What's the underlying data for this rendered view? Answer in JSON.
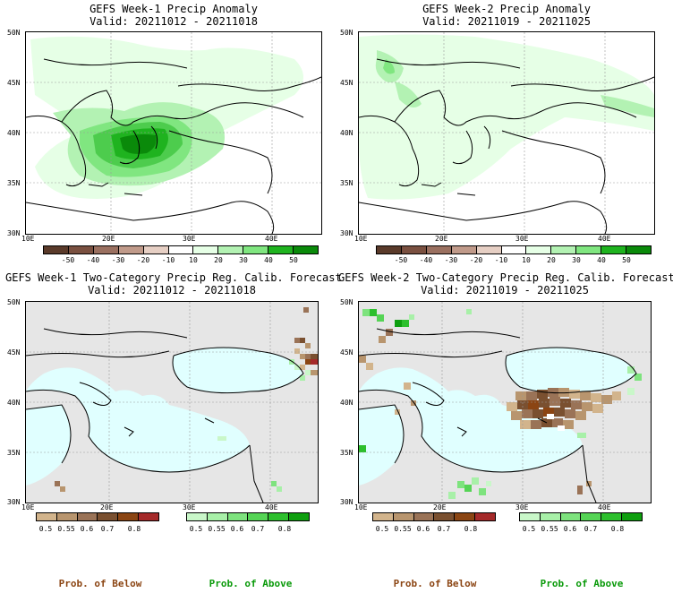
{
  "colors": {
    "above": [
      "#e6ffe6",
      "#b3f2b3",
      "#80e680",
      "#4dcc4d",
      "#1fb31f",
      "#0a8a0a"
    ],
    "below": [
      "#5a3a2a",
      "#7a5040",
      "#9a7060",
      "#c09a8a",
      "#e6cfc4",
      "#f7eae4"
    ],
    "prob_below": [
      "#d2b48c",
      "#b8956e",
      "#9a7357",
      "#7a5030",
      "#8b4513",
      "#a52a2a"
    ],
    "prob_above": [
      "#c9f7c9",
      "#a8f0a8",
      "#7ee37e",
      "#55d455",
      "#2dbf2d",
      "#0f9f0f"
    ],
    "below_label": "#8b4513",
    "above_label": "#0a9a0a",
    "sea_prob": "#e0ffff",
    "land_prob": "#e6e6e6"
  },
  "panels": [
    {
      "title": "GEFS Week-1 Precip Anomaly",
      "valid": "Valid: 20211012 - 20211018",
      "type": "anomaly",
      "lat_labels": [
        "50N",
        "45N",
        "40N",
        "35N",
        "30N"
      ],
      "lon_labels": [
        "10E",
        "20E",
        "30E",
        "40E"
      ]
    },
    {
      "title": "GEFS Week-2 Precip Anomaly",
      "valid": "Valid: 20211019 - 20211025",
      "type": "anomaly",
      "lat_labels": [
        "50N",
        "45N",
        "40N",
        "35N",
        "30N"
      ],
      "lon_labels": [
        "10E",
        "20E",
        "30E",
        "40E"
      ]
    },
    {
      "title": "GEFS Week-1 Two-Category Precip Reg. Calib. Forecast",
      "valid": "Valid: 20211012 - 20211018",
      "type": "prob",
      "lat_labels": [
        "50N",
        "45N",
        "40N",
        "35N",
        "30N"
      ],
      "lon_labels": [
        "10E",
        "20E",
        "30E",
        "40E"
      ]
    },
    {
      "title": "GEFS Week-2 Two-Category Precip Reg. Calib. Forecast",
      "valid": "Valid: 20211019 - 20211025",
      "type": "prob",
      "lat_labels": [
        "50N",
        "45N",
        "40N",
        "35N",
        "30N"
      ],
      "lon_labels": [
        "10E",
        "20E",
        "30E",
        "40E"
      ]
    }
  ],
  "anomaly_colorbar": {
    "labels": [
      "-50",
      "-40",
      "-30",
      "-20",
      "-10",
      "10",
      "20",
      "30",
      "40",
      "50"
    ]
  },
  "prob_colorbar": {
    "labels": [
      "0.5",
      "0.55",
      "0.6",
      "0.7",
      "0.8"
    ]
  },
  "prob_of_below": "Prob. of Below",
  "prob_of_above": "Prob. of Above"
}
